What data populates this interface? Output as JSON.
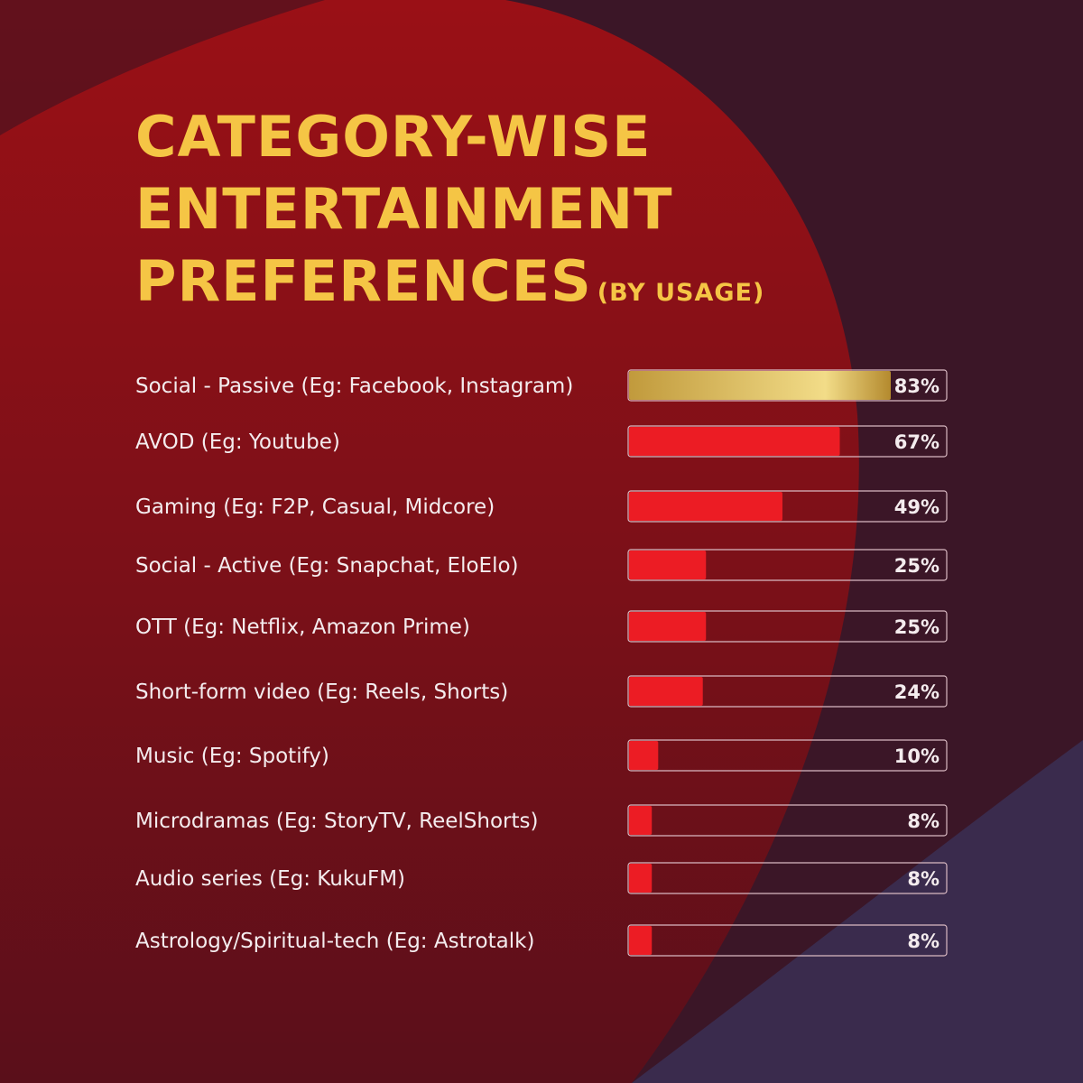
{
  "title": {
    "line1": "CATEGORY-WISE",
    "line2": "ENTERTAINMENT",
    "line3": "PREFERENCES",
    "subtitle": "(BY USAGE)"
  },
  "colors": {
    "title": "#f5c545",
    "bar_red": "#ec1c24",
    "bar_gold_start": "#c19a3c",
    "bar_gold_mid": "#f2dc88",
    "bar_gold_end": "#b48a2e",
    "track_border": "#d9b9c2",
    "text": "#f4ecee"
  },
  "chart_data": {
    "type": "bar",
    "orientation": "horizontal",
    "title": "CATEGORY-WISE ENTERTAINMENT PREFERENCES (BY USAGE)",
    "xlim": [
      0,
      100
    ],
    "unit": "%",
    "categories": [
      "Social - Passive (Eg: Facebook, Instagram)",
      "AVOD (Eg: Youtube)",
      "Gaming (Eg: F2P, Casual, Midcore)",
      "Social - Active (Eg: Snapchat, EloElo)",
      "OTT (Eg: Netflix, Amazon Prime)",
      "Short-form video (Eg: Reels, Shorts)",
      "Music (Eg: Spotify)",
      "Microdramas (Eg: StoryTV, ReelShorts)",
      "Audio series (Eg: KukuFM)",
      "Astrology/Spiritual-tech (Eg: Astrotalk)"
    ],
    "values": [
      83,
      67,
      49,
      25,
      25,
      24,
      10,
      8,
      8,
      8
    ],
    "value_labels": [
      "83%",
      "67%",
      "49%",
      "25%",
      "25%",
      "24%",
      "10%",
      "8%",
      "8%",
      "8%"
    ],
    "highlight_index": 0,
    "grid": false,
    "legend": "none"
  }
}
